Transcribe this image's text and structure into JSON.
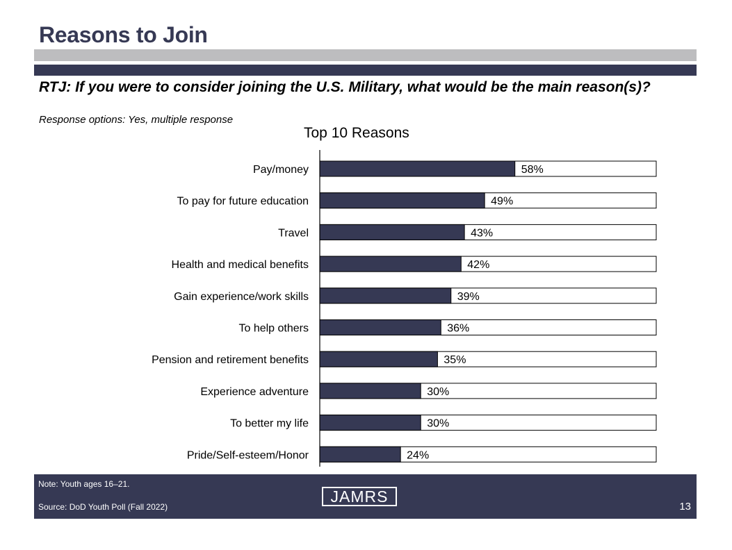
{
  "header": {
    "title": "Reasons to Join",
    "question": "RTJ: If you were to consider joining the U.S. Military, what would be the main reason(s)?",
    "response_options": "Response options: Yes, multiple response"
  },
  "colors": {
    "navy": "#363954",
    "gray": "#bdbdbf",
    "bar_fill": "#363954",
    "bar_bg": "#ffffff"
  },
  "chart_data": {
    "type": "bar",
    "orientation": "horizontal",
    "title": "Top 10 Reasons",
    "categories": [
      "Pay/money",
      "To pay for future education",
      "Travel",
      "Health and medical benefits",
      "Gain experience/work skills",
      "To help others",
      "Pension and retirement benefits",
      "Experience adventure",
      "To better my life",
      "Pride/Self-esteem/Honor"
    ],
    "values": [
      58,
      49,
      43,
      42,
      39,
      36,
      35,
      30,
      30,
      24
    ],
    "data_labels": [
      "58%",
      "49%",
      "43%",
      "42%",
      "39%",
      "36%",
      "35%",
      "30%",
      "30%",
      "24%"
    ],
    "xlim": [
      0,
      100
    ],
    "unit": "%",
    "grid": false,
    "legend": "none"
  },
  "footer": {
    "note": "Note: Youth ages 16–21.",
    "source": "Source: DoD Youth Poll (Fall 2022)",
    "logo_text": "JAMRS",
    "page_number": "13"
  }
}
